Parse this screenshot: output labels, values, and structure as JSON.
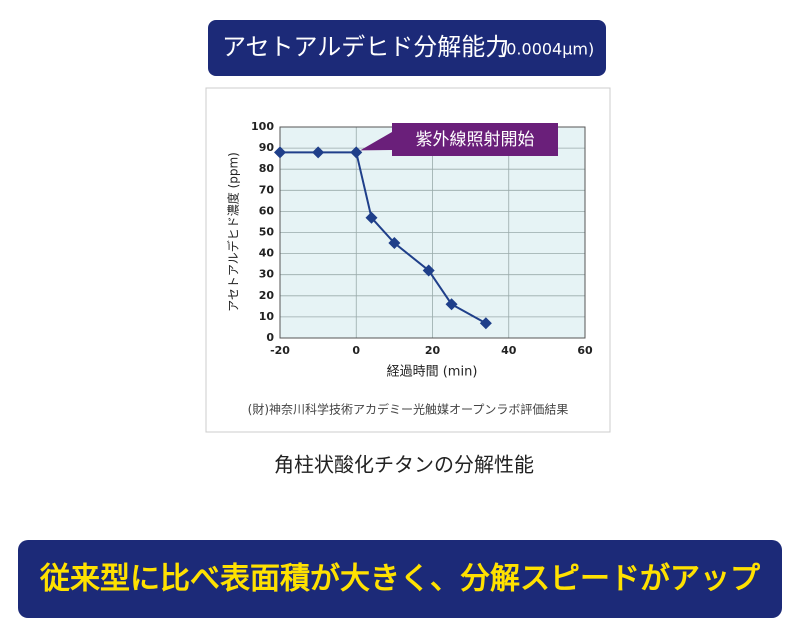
{
  "chart_data": {
    "type": "line",
    "title": "アセトアルデヒド分解能力",
    "subtitle": "(0.0004μm)",
    "annotation": "紫外線照射開始",
    "x_label": "経過時間 (min)",
    "y_label": "アセトアルデヒド濃度 (ppm)",
    "note": "(財)神奈川科学技術アカデミー光触媒オープンラボ評価結果",
    "caption": "角柱状酸化チタンの分解性能",
    "banner": "従来型に比べ表面積が大きく、分解スピードがアップ",
    "x": [
      -20,
      -10,
      0,
      4,
      10,
      19,
      25,
      34
    ],
    "series": [
      {
        "color": "#1f3f8a",
        "values": [
          88,
          88,
          88,
          57,
          45,
          32,
          16,
          7
        ]
      }
    ],
    "xlim": [
      -20,
      60
    ],
    "xticks": [
      -20,
      0,
      20,
      40,
      60
    ],
    "ylim": [
      0,
      100
    ],
    "yticks": [
      0,
      10,
      20,
      30,
      40,
      50,
      60,
      70,
      80,
      90,
      100
    ],
    "grid": true
  }
}
